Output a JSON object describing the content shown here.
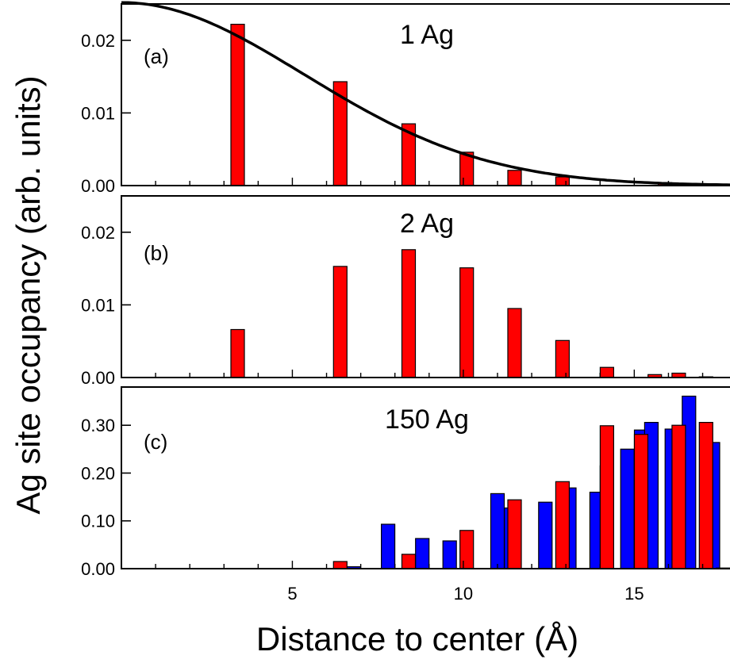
{
  "chart_data": {
    "type": "bar",
    "xlabel": "Distance to center (Å)",
    "ylabel": "Ag site occupancy (arb. units)",
    "xlim": [
      0,
      17.8
    ],
    "xticks": [
      5,
      10,
      15
    ],
    "grid": false,
    "legend": "none",
    "colors": {
      "red": "#ff0000",
      "blue": "#0000ff",
      "curve": "#000000"
    },
    "panels": [
      {
        "tag": "(a)",
        "title": "1 Ag",
        "ylim": [
          0,
          0.025
        ],
        "yticks": [
          0.0,
          0.01,
          0.02
        ],
        "ytick_labels": [
          "0.00",
          "0.01",
          "0.02"
        ],
        "series": [
          {
            "color": "red",
            "x": [
              3.4,
              6.4,
              8.4,
              10.1,
              11.5,
              12.9,
              15.9
            ],
            "values": [
              0.0222,
              0.0143,
              0.0085,
              0.0046,
              0.0021,
              0.0012,
              0.0004
            ]
          }
        ],
        "curve": {
          "type": "gaussian",
          "amplitude": 0.0252,
          "sigma": 5.35
        }
      },
      {
        "tag": "(b)",
        "title": "2 Ag",
        "ylim": [
          0,
          0.025
        ],
        "yticks": [
          0.0,
          0.01,
          0.02
        ],
        "ytick_labels": [
          "0.00",
          "0.01",
          "0.02"
        ],
        "series": [
          {
            "color": "red",
            "x": [
              3.4,
              6.4,
              8.4,
              10.1,
              11.5,
              12.9,
              14.2,
              15.6,
              16.3,
              17.1
            ],
            "values": [
              0.0066,
              0.0153,
              0.0176,
              0.0151,
              0.0095,
              0.0051,
              0.0014,
              0.0004,
              0.0006,
              0.0001
            ]
          }
        ]
      },
      {
        "tag": "(c)",
        "title": "150 Ag",
        "ylim": [
          0,
          0.38
        ],
        "yticks": [
          0.0,
          0.1,
          0.2,
          0.3
        ],
        "ytick_labels": [
          "0.00",
          "0.10",
          "0.20",
          "0.30"
        ],
        "series": [
          {
            "color": "blue",
            "x": [
              6.8,
              7.8,
              8.8,
              9.6,
              11.0,
              11.4,
              12.4,
              13.1,
              13.9,
              14.2,
              14.8,
              15.2,
              15.5,
              16.1,
              16.6,
              17.3,
              17.6
            ],
            "values": [
              0.004,
              0.093,
              0.063,
              0.058,
              0.157,
              0.127,
              0.139,
              0.169,
              0.16,
              0.215,
              0.25,
              0.29,
              0.306,
              0.292,
              0.361,
              0.264,
              0.0
            ]
          },
          {
            "color": "red",
            "x": [
              6.4,
              8.4,
              10.1,
              11.5,
              12.9,
              14.2,
              15.2,
              16.3,
              17.1
            ],
            "values": [
              0.015,
              0.03,
              0.08,
              0.144,
              0.182,
              0.299,
              0.281,
              0.3,
              0.306
            ]
          }
        ]
      }
    ]
  }
}
